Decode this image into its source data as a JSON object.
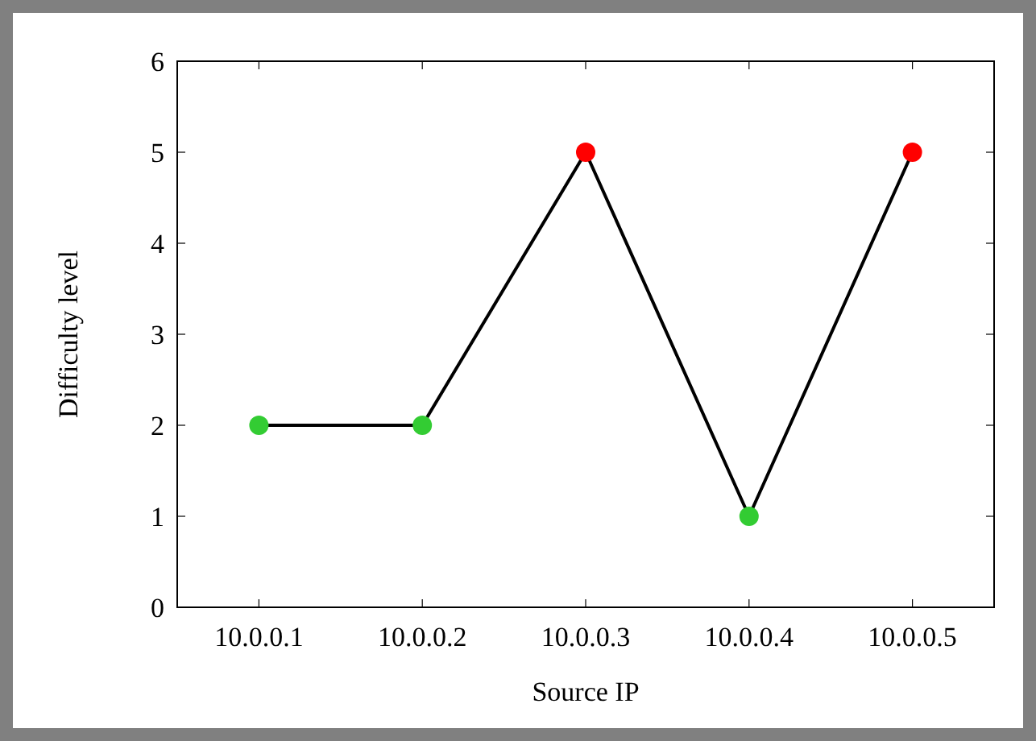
{
  "chart_data": {
    "type": "line",
    "xlabel": "Source IP",
    "ylabel": "Difficulty level",
    "categories": [
      "10.0.0.1",
      "10.0.0.2",
      "10.0.0.3",
      "10.0.0.4",
      "10.0.0.5"
    ],
    "series": [
      {
        "color": "#000000",
        "values": [
          2,
          2,
          5,
          1,
          5
        ],
        "colors": [
          "#33cc33",
          "#33cc33",
          "#ff0000",
          "#33cc33",
          "#ff0000"
        ]
      }
    ],
    "ylim": [
      0,
      6
    ],
    "yticks": [
      0,
      1,
      2,
      3,
      4,
      5,
      6
    ],
    "grid": false,
    "marker": "circle",
    "line_style": "solid"
  }
}
